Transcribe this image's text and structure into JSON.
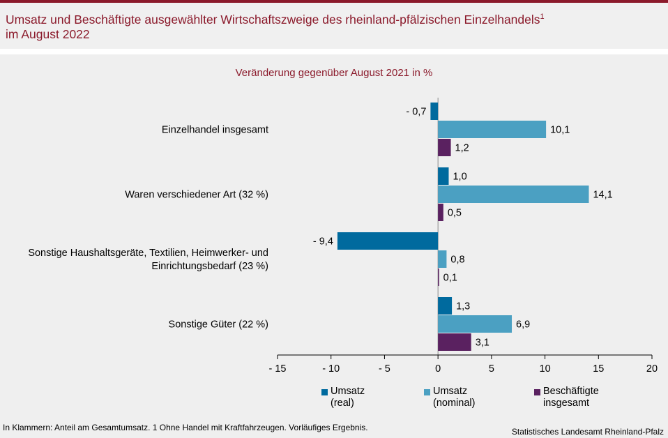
{
  "header": {
    "title_line1": "Umsatz und Beschäftigte ausgewählter Wirtschaftszweige des rheinland-pfälzischen Einzelhandels",
    "title_sup": "1",
    "title_line2": "im August 2022",
    "accent_color": "#8b1a2b"
  },
  "footer": {
    "note": "In Klammern: Anteil am Gesamtumsatz. 1 Ohne Handel mit Kraftfahrzeugen. Vorläufiges Ergebnis.",
    "source": "Statistisches Landesamt Rheinland-Pfalz"
  },
  "chart_data": {
    "type": "bar",
    "orientation": "horizontal",
    "title": "Veränderung gegenüber August 2021 in %",
    "categories": [
      [
        "Einzelhandel insgesamt"
      ],
      [
        "Waren verschiedener Art (32 %)"
      ],
      [
        "Sonstige Haushaltsgeräte, Textilien, Heimwerker- und",
        "Einrichtungsbedarf (23 %)"
      ],
      [
        "Sonstige Güter (22 %)"
      ]
    ],
    "series": [
      {
        "name": "Umsatz (real)",
        "legend": [
          "Umsatz",
          "(real)"
        ],
        "color": "#006a9e",
        "values": [
          -0.7,
          1.0,
          -9.4,
          1.3
        ],
        "labels": [
          "- 0,7",
          "1,0",
          "- 9,4",
          "1,3"
        ]
      },
      {
        "name": "Umsatz (nominal)",
        "legend": [
          "Umsatz",
          "(nominal)"
        ],
        "color": "#4ba0c2",
        "values": [
          10.1,
          14.1,
          0.8,
          6.9
        ],
        "labels": [
          "10,1",
          "14,1",
          "0,8",
          "6,9"
        ]
      },
      {
        "name": "Beschäftigte insgesamt",
        "legend": [
          "Beschäftigte",
          "insgesamt"
        ],
        "color": "#5a2160",
        "values": [
          1.2,
          0.5,
          0.1,
          3.1
        ],
        "labels": [
          "1,2",
          "0,5",
          "0,1",
          "3,1"
        ]
      }
    ],
    "xlim": [
      -15,
      20
    ],
    "xticks": [
      -15,
      -10,
      -5,
      0,
      5,
      10,
      15,
      20
    ],
    "xtick_labels": [
      "- 15",
      "- 10",
      "- 5",
      "0",
      "5",
      "10",
      "15",
      "20"
    ],
    "grid": false,
    "legend_position": "bottom"
  }
}
